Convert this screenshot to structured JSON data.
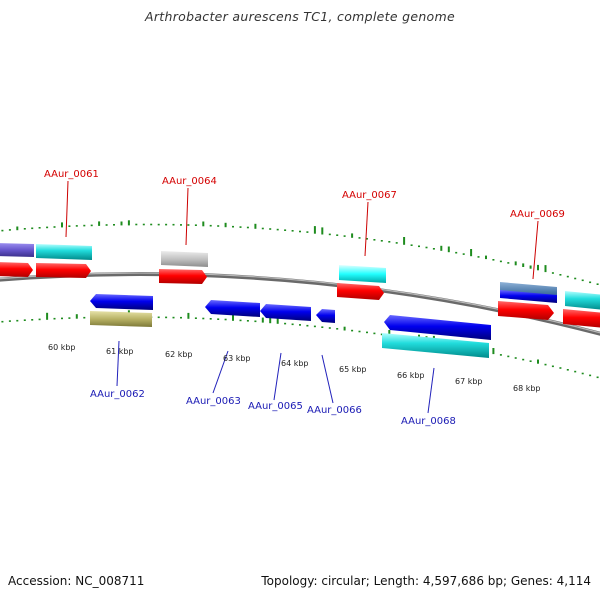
{
  "header": {
    "title": "Arthrobacter aurescens TC1, complete genome"
  },
  "footer": {
    "accession": "Accession: NC_008711",
    "summary": "Topology: circular; Length: 4,597,686 bp; Genes: 4,114"
  },
  "ruler": {
    "ticks": [
      "60 kbp",
      "61 kbp",
      "62 kbp",
      "63 kbp",
      "64 kbp",
      "65 kbp",
      "66 kbp",
      "67 kbp",
      "68 kbp"
    ]
  },
  "labels": {
    "forward": [
      "AAur_0061",
      "AAur_0064",
      "AAur_0067",
      "AAur_0069"
    ],
    "reverse": [
      "AAur_0062",
      "AAur_0063",
      "AAur_0065",
      "AAur_0066",
      "AAur_0068"
    ]
  },
  "colors": {
    "forward_label": "#d40000",
    "reverse_label": "#1a1ab4",
    "cds": "#ff0000",
    "gene_cyan": "#00cccc",
    "gene_blue": "#0000ee",
    "gene_grey": "#bdbdbd",
    "gene_olive": "#b5b060",
    "gene_purple": "#6655cc",
    "backbone": "#8a8a8a",
    "gc_ticks": "#1e8c1e"
  }
}
